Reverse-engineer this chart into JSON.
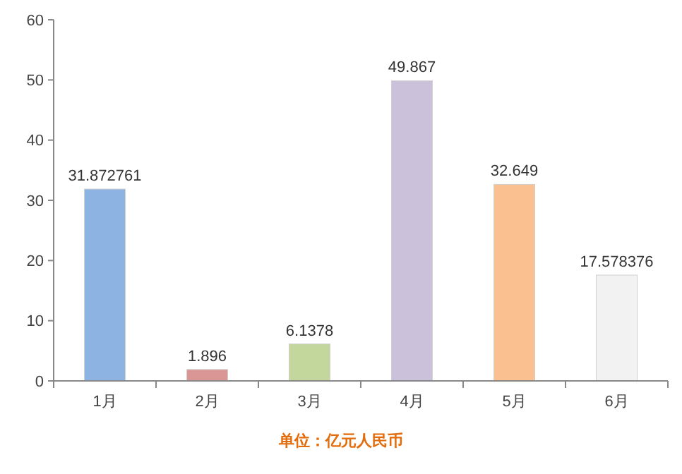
{
  "chart_data": {
    "type": "bar",
    "categories": [
      "1月",
      "2月",
      "3月",
      "4月",
      "5月",
      "6月"
    ],
    "values": [
      31.872761,
      1.896,
      6.1378,
      49.867,
      32.649,
      17.578376
    ],
    "colors": [
      "#8db3e2",
      "#d99694",
      "#c3d69b",
      "#ccc1da",
      "#fac090",
      "#f2f2f2"
    ],
    "ylim": [
      0,
      60
    ],
    "yticks": [
      0,
      10,
      20,
      30,
      40,
      50,
      60
    ],
    "grid": false,
    "data_labels": true,
    "annotations": [
      "单位：亿元人民币"
    ]
  }
}
